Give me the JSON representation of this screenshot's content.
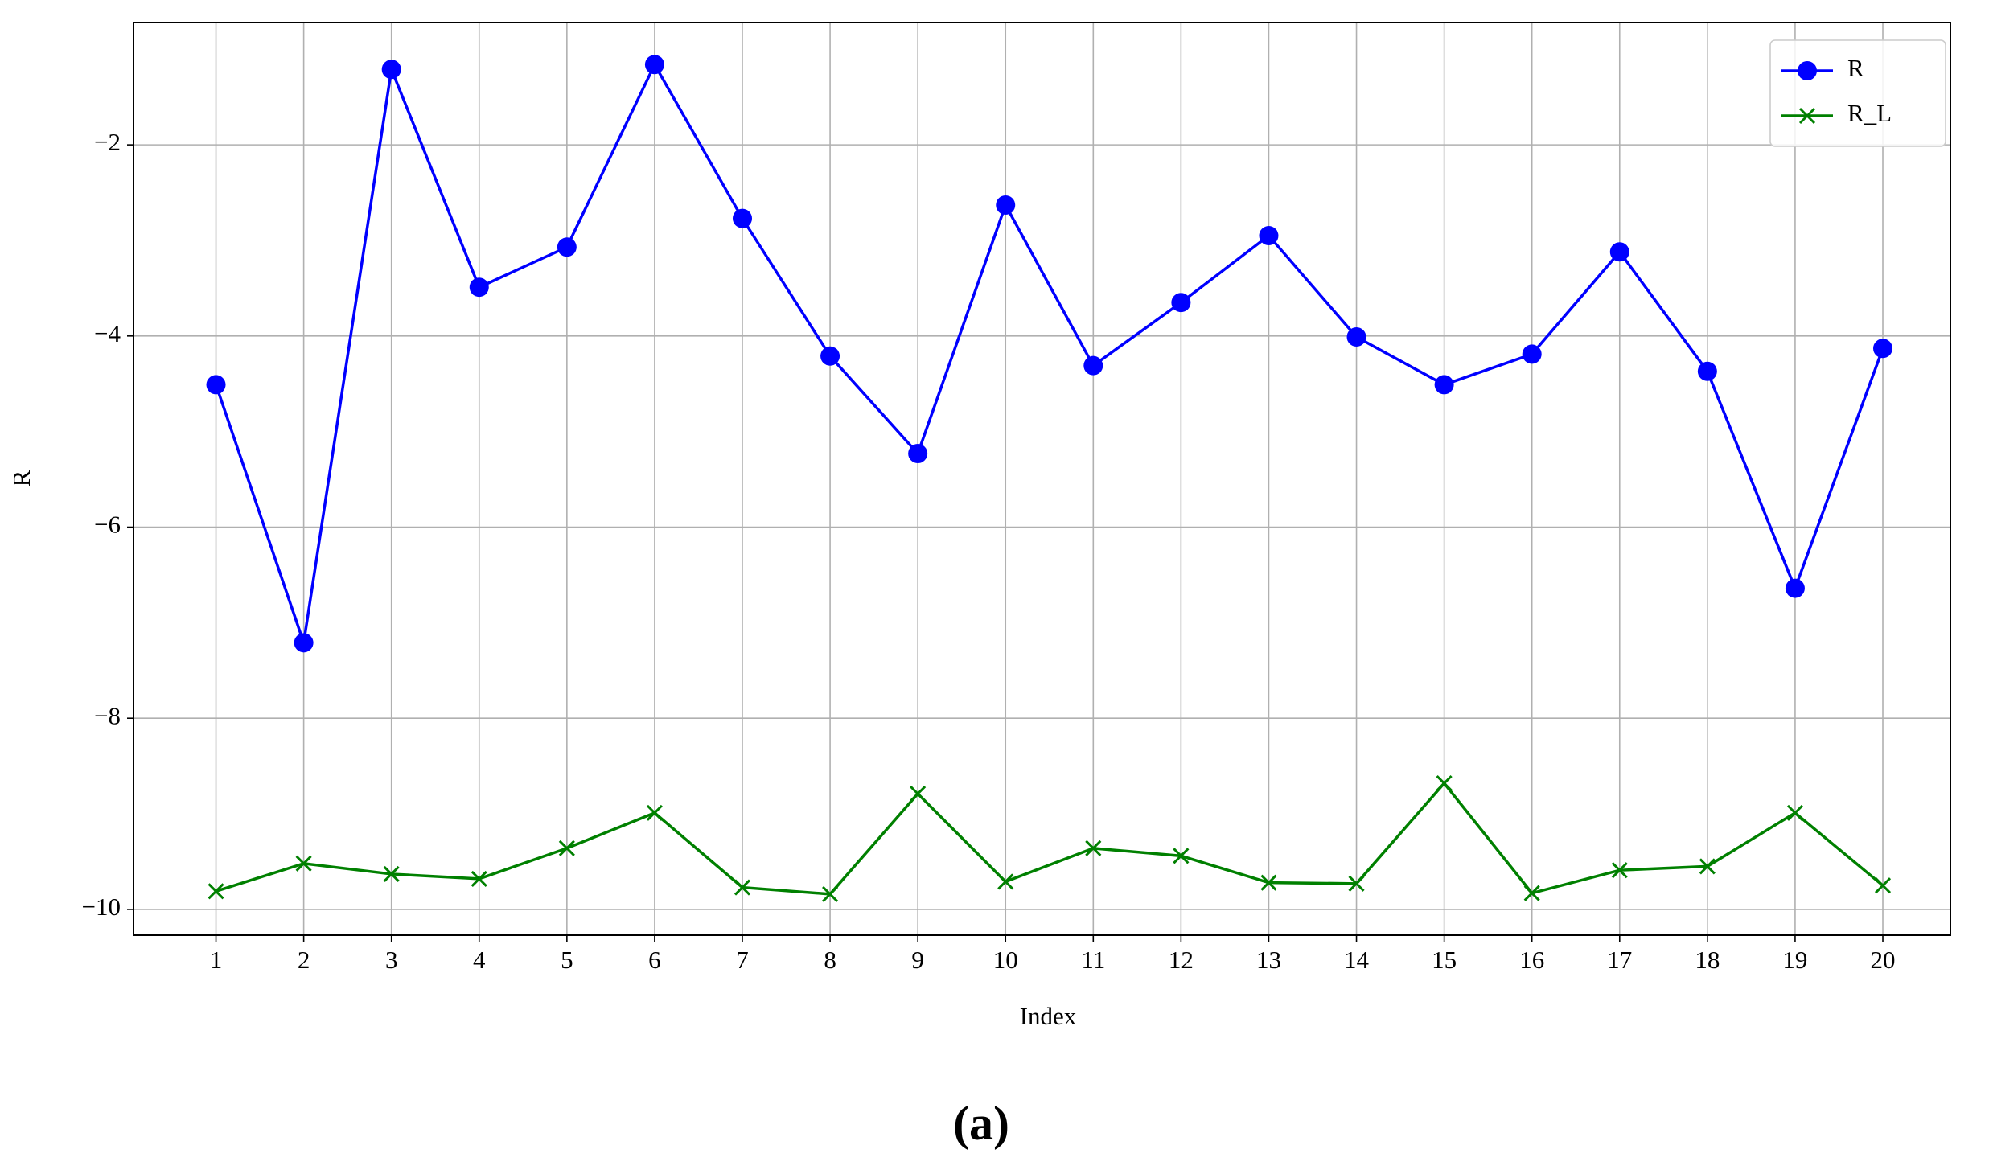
{
  "chart_data": {
    "type": "line",
    "xlabel": "Index",
    "ylabel": "R",
    "caption": "(a)",
    "x": [
      1,
      2,
      3,
      4,
      5,
      6,
      7,
      8,
      9,
      10,
      11,
      12,
      13,
      14,
      15,
      16,
      17,
      18,
      19,
      20
    ],
    "series": [
      {
        "name": "R",
        "color": "#0000ff",
        "marker": "circle",
        "values": [
          -4.51,
          -7.21,
          -1.21,
          -3.49,
          -3.07,
          -1.16,
          -2.77,
          -4.21,
          -5.23,
          -2.63,
          -4.31,
          -3.65,
          -2.95,
          -4.01,
          -4.51,
          -4.19,
          -3.12,
          -4.37,
          -6.64,
          -4.13
        ]
      },
      {
        "name": "R_L",
        "color": "#008000",
        "marker": "x",
        "values": [
          -9.81,
          -9.52,
          -9.63,
          -9.68,
          -9.36,
          -8.99,
          -9.77,
          -9.84,
          -8.79,
          -9.71,
          -9.36,
          -9.44,
          -9.72,
          -9.73,
          -8.68,
          -9.83,
          -9.59,
          -9.55,
          -8.99,
          -9.75
        ]
      }
    ],
    "xlim": [
      0.06,
      20.77
    ],
    "xticks": [
      1,
      2,
      3,
      4,
      5,
      6,
      7,
      8,
      9,
      10,
      11,
      12,
      13,
      14,
      15,
      16,
      17,
      18,
      19,
      20
    ],
    "ylim": [
      -10.27,
      -0.72
    ],
    "yticks": [
      {
        "value": -10,
        "label": "−10"
      },
      {
        "value": -8,
        "label": "−8"
      },
      {
        "value": -6,
        "label": "−6"
      },
      {
        "value": -4,
        "label": "−4"
      },
      {
        "value": -2,
        "label": "−2"
      }
    ],
    "grid": true,
    "legend": "upper right"
  }
}
